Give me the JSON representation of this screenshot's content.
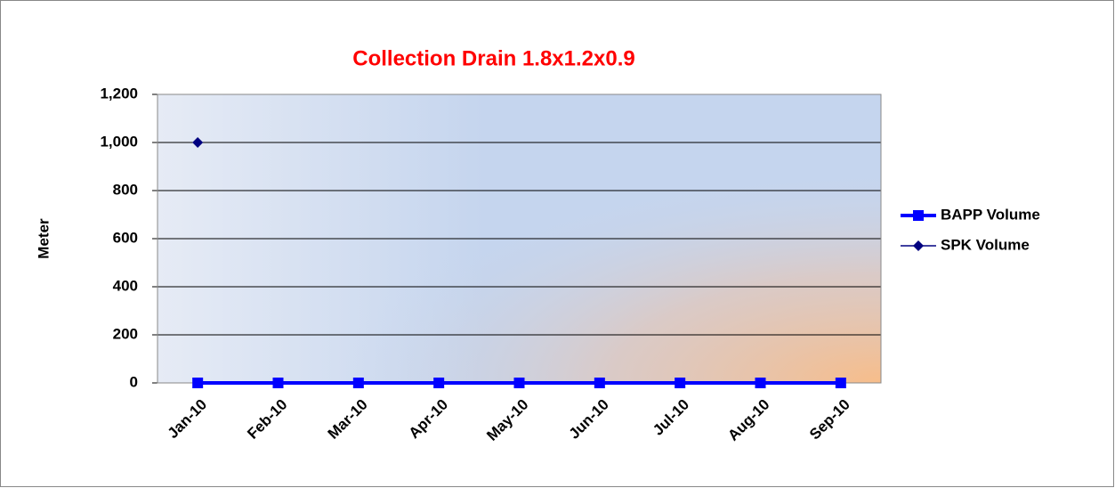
{
  "chart_data": {
    "type": "line",
    "title": "Collection Drain 1.8x1.2x0.9",
    "y_label": "Meter",
    "categories": [
      "Jan-10",
      "Feb-10",
      "Mar-10",
      "Apr-10",
      "May-10",
      "Jun-10",
      "Jul-10",
      "Aug-10",
      "Sep-10"
    ],
    "series": [
      {
        "name": "BAPP Volume",
        "color": "#0000ff",
        "values": [
          0,
          0,
          0,
          0,
          0,
          0,
          0,
          0,
          0
        ]
      },
      {
        "name": "SPK Volume",
        "color": "#000080",
        "values": [
          1000,
          null,
          null,
          null,
          null,
          null,
          null,
          null,
          null
        ]
      }
    ],
    "ylim": [
      0,
      1200
    ],
    "yticks": [
      0,
      200,
      400,
      600,
      800,
      {
        "value": 1000,
        "label": "1,000"
      },
      {
        "value": 1200,
        "label": "1,200"
      }
    ],
    "grid": true,
    "legend": "right"
  }
}
